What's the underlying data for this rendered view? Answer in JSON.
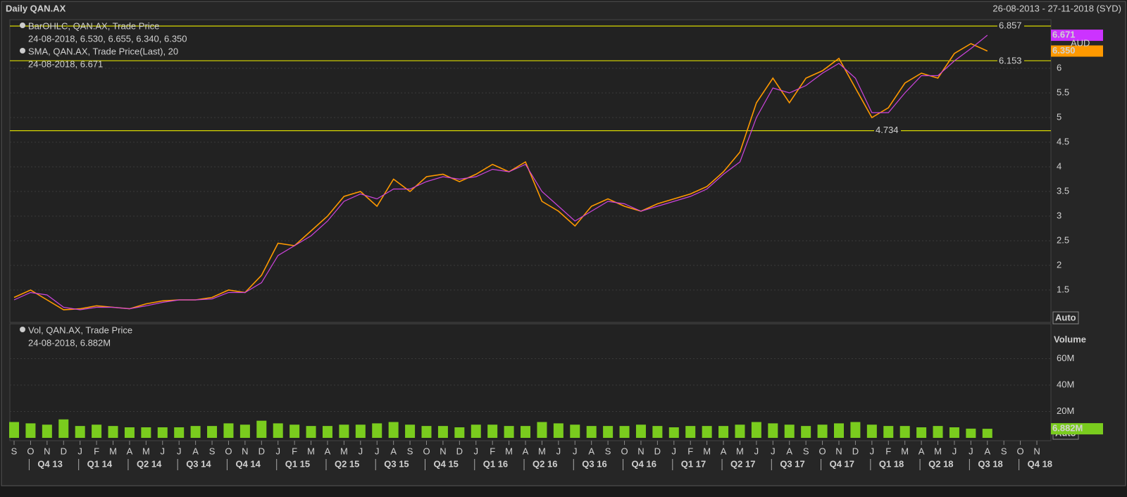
{
  "header": {
    "title": "Daily QAN.AX",
    "date_range": "26-08-2013 - 27-11-2018 (SYD)"
  },
  "chart_data": [
    {
      "type": "line",
      "categories": [
        "S",
        "O",
        "N",
        "D",
        "J",
        "F",
        "M",
        "A",
        "M",
        "J",
        "J",
        "A",
        "S",
        "O",
        "N",
        "D",
        "J",
        "F",
        "M",
        "A",
        "M",
        "J",
        "J",
        "A",
        "S",
        "O",
        "N",
        "D",
        "J",
        "F",
        "M",
        "A",
        "M",
        "J",
        "J",
        "A",
        "S",
        "O",
        "N",
        "D",
        "J",
        "F",
        "M",
        "A",
        "M",
        "J",
        "J",
        "A",
        "S",
        "O",
        "N",
        "D",
        "J",
        "F",
        "M",
        "A",
        "M",
        "J",
        "J",
        "A",
        "S",
        "O",
        "N"
      ],
      "quarters": [
        "Q4 13",
        "Q1 14",
        "Q2 14",
        "Q3 14",
        "Q4 14",
        "Q1 15",
        "Q2 15",
        "Q3 15",
        "Q4 15",
        "Q1 16",
        "Q2 16",
        "Q3 16",
        "Q4 16",
        "Q1 17",
        "Q2 17",
        "Q3 17",
        "Q4 17",
        "Q1 18",
        "Q2 18",
        "Q3 18",
        "Q4 18"
      ],
      "series": [
        {
          "name": "BarOHLC, QAN.AX, Trade Price",
          "legend_value": "24-08-2018, 6.530, 6.655, 6.340, 6.350",
          "color": "#ff9900",
          "values": [
            1.35,
            1.5,
            1.3,
            1.1,
            1.12,
            1.18,
            1.15,
            1.12,
            1.22,
            1.28,
            1.3,
            1.3,
            1.35,
            1.5,
            1.45,
            1.8,
            2.45,
            2.4,
            2.7,
            3.0,
            3.4,
            3.5,
            3.2,
            3.75,
            3.5,
            3.8,
            3.85,
            3.7,
            3.85,
            4.05,
            3.9,
            4.1,
            3.3,
            3.1,
            2.8,
            3.2,
            3.35,
            3.2,
            3.1,
            3.25,
            3.35,
            3.45,
            3.6,
            3.9,
            4.3,
            5.3,
            5.8,
            5.3,
            5.8,
            5.95,
            6.2,
            5.6,
            5.0,
            5.2,
            5.7,
            5.9,
            5.8,
            6.3,
            6.5,
            6.35,
            null,
            null,
            null
          ]
        },
        {
          "name": "SMA, QAN.AX, Trade Price(Last),  20",
          "legend_value": "24-08-2018, 6.671",
          "color": "#cc44dd",
          "values": [
            1.3,
            1.45,
            1.4,
            1.15,
            1.1,
            1.15,
            1.15,
            1.12,
            1.18,
            1.25,
            1.3,
            1.3,
            1.32,
            1.45,
            1.45,
            1.65,
            2.2,
            2.4,
            2.6,
            2.9,
            3.3,
            3.45,
            3.35,
            3.55,
            3.55,
            3.7,
            3.8,
            3.75,
            3.8,
            3.95,
            3.9,
            4.05,
            3.5,
            3.2,
            2.9,
            3.1,
            3.3,
            3.25,
            3.1,
            3.2,
            3.3,
            3.4,
            3.55,
            3.85,
            4.1,
            5.0,
            5.6,
            5.5,
            5.65,
            5.9,
            6.1,
            5.8,
            5.1,
            5.1,
            5.5,
            5.85,
            5.85,
            6.15,
            6.4,
            6.671,
            null,
            null,
            null
          ]
        }
      ],
      "ylim": [
        0.843,
        6.986
      ],
      "yticks": [
        1.5,
        2,
        2.5,
        3,
        3.5,
        4,
        4.5,
        5,
        5.5,
        6
      ],
      "hlines": [
        6.857,
        6.153,
        4.734
      ],
      "hline_color": "#d8d800",
      "last_markers": [
        {
          "value": 6.671,
          "color": "#cc33ff"
        },
        {
          "value": 6.35,
          "label": "6.350",
          "color": "#ff9900"
        }
      ],
      "unit": "AUD",
      "scale_button": "Auto",
      "grid": true
    },
    {
      "type": "bar",
      "series": [
        {
          "name": "Vol, QAN.AX, Trade Price",
          "legend_value": "24-08-2018, 6.882M",
          "color": "#7acc1e",
          "values": [
            12,
            11,
            10,
            14,
            9,
            10,
            9,
            8,
            8,
            8,
            8,
            9,
            9,
            11,
            10,
            13,
            11,
            10,
            9,
            9,
            10,
            10,
            11,
            12,
            10,
            9,
            9,
            8,
            10,
            10,
            9,
            9,
            12,
            11,
            10,
            9,
            9,
            9,
            10,
            9,
            8,
            9,
            9,
            9,
            10,
            12,
            11,
            10,
            9,
            10,
            11,
            12,
            10,
            9,
            9,
            8,
            9,
            8,
            7,
            6.882,
            null,
            null,
            null
          ]
        }
      ],
      "last_label": "6.882M",
      "y_label": "Volume",
      "ylim": [
        0,
        86.4
      ],
      "yticks": [
        {
          "value": 20,
          "label": "20M"
        },
        {
          "value": 40,
          "label": "40M"
        },
        {
          "value": 60,
          "label": "60M"
        }
      ],
      "scale_button": "Auto",
      "grid": true
    }
  ]
}
